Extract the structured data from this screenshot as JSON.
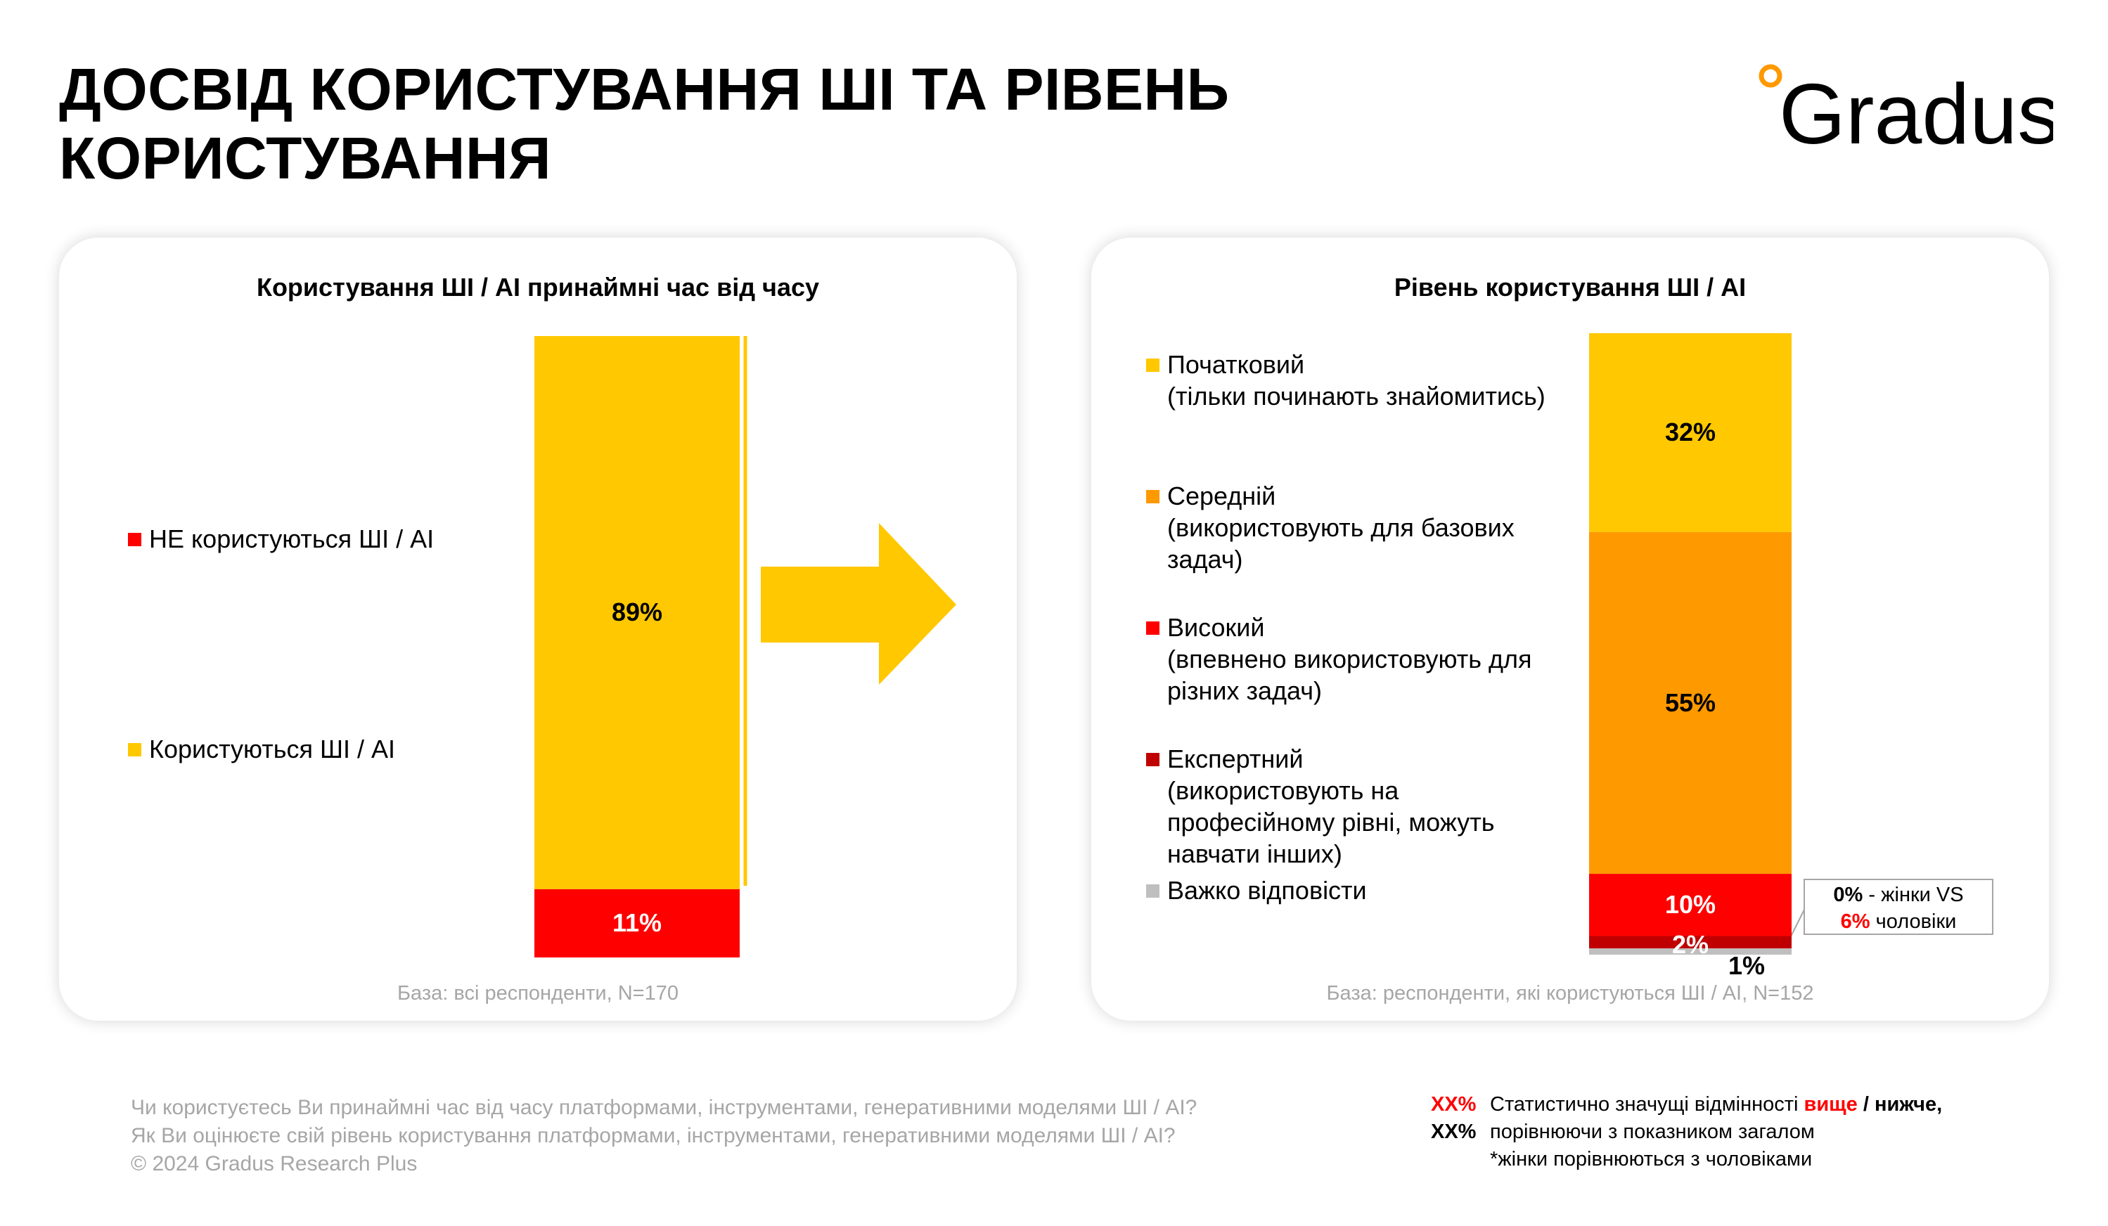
{
  "header": {
    "title_line1": "ДОСВІД КОРИСТУВАННЯ ШІ ТА РІВЕНЬ",
    "title_line2": "КОРИСТУВАННЯ",
    "logo_text": "Gradus"
  },
  "colors": {
    "yellow": "#FFC800",
    "orange": "#FF9900",
    "red": "#FF0000",
    "dark_red": "#C00000",
    "gray": "#BFBFBF",
    "accent_red_text": "#FF0000"
  },
  "chart_data": [
    {
      "type": "bar",
      "stacked": true,
      "title": "Користування ШІ / AI принаймні час від часу",
      "unit": "%",
      "series": [
        {
          "name": "НЕ користуються ШІ / AI",
          "value": 11,
          "color": "#FF0000"
        },
        {
          "name": "Користуються ШІ / AI",
          "value": 89,
          "color": "#FFC800"
        }
      ],
      "base_note": "База: всі респонденти, N=170"
    },
    {
      "type": "bar",
      "stacked": true,
      "title": "Рівень користування ШІ / AI",
      "unit": "%",
      "series": [
        {
          "name": "Початковий",
          "desc": "(тільки починають знайомитись)",
          "value": 32,
          "color": "#FFC800"
        },
        {
          "name": "Середній",
          "desc_lines": [
            "(використовують для базових",
            "задач)"
          ],
          "value": 55,
          "color": "#FF9900"
        },
        {
          "name": "Високий",
          "desc_lines": [
            "(впевнено використовують для",
            "різних задач)"
          ],
          "value": 10,
          "color": "#FF0000"
        },
        {
          "name": "Експертний",
          "desc_lines": [
            "(використовують на",
            "професійному рівні, можуть",
            "навчати інших)"
          ],
          "value": 2,
          "color": "#C00000"
        },
        {
          "name": "Важко відповісти",
          "value": 1,
          "color": "#BFBFBF"
        }
      ],
      "annotation": {
        "line1_value": "0%",
        "line1_text": " - жінки VS",
        "line2_value": "6%",
        "line2_text": " чоловіки"
      },
      "base_note": "База: респонденти, які користуються ШІ / AI, N=152"
    }
  ],
  "footer": {
    "question_1": "Чи користуєтесь Ви принаймні час від часу платформами, інструментами, генеративними моделями ШІ / AI?",
    "question_2": "Як Ви оцінюєте свій рівень користування платформами, інструментами, генеративними моделями ШІ / AI?",
    "copyright": "© 2024 Gradus Research Plus",
    "sig_marker": "XX%",
    "sig_line1_a": "Статистично значущі відмінності ",
    "sig_line1_higher": "вище",
    "sig_line1_sep": " / ",
    "sig_line1_lower": "нижче,",
    "sig_line2": "порівнюючи з показником загалом",
    "sig_line3": "*жінки порівнюються з чоловіками"
  }
}
